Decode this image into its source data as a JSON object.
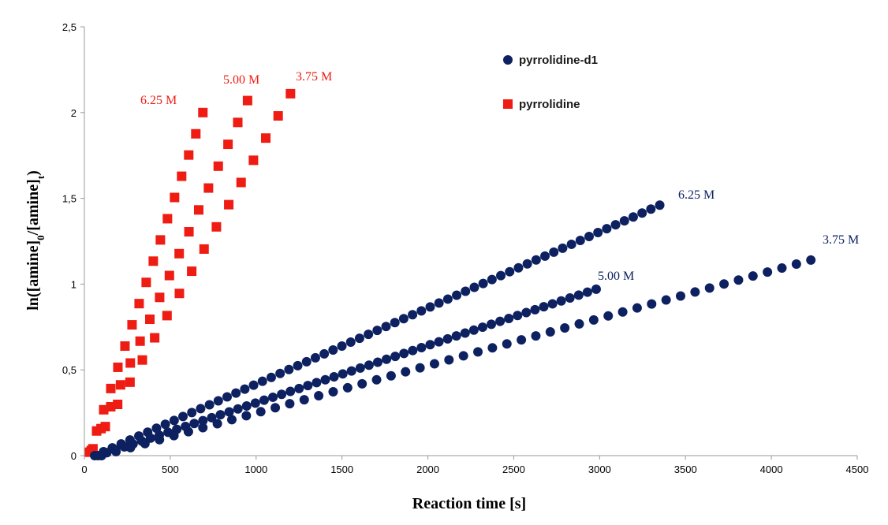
{
  "chart_data": {
    "type": "scatter",
    "title": "",
    "xlabel": "Reaction time [s]",
    "ylabel": "ln([amine]0/[amine]t)",
    "xlim": [
      0,
      4500
    ],
    "ylim": [
      0,
      2.5
    ],
    "x_ticks": [
      "0",
      "500",
      "1000",
      "1500",
      "2000",
      "2500",
      "3000",
      "3500",
      "4000",
      "4500"
    ],
    "y_ticks": [
      "0",
      "0,5",
      "1",
      "1,5",
      "2",
      "2,5"
    ],
    "grid": false,
    "legend_position": "top-right",
    "legend": [
      {
        "label": "pyrrolidine-d1",
        "marker": "circle",
        "color": "#0d2060"
      },
      {
        "label": "pyrrolidine",
        "marker": "square",
        "color": "#ee1c12"
      }
    ],
    "series": [
      {
        "group": "pyrrolidine",
        "annotation": "6.25 M",
        "marker": "square",
        "color": "#ee1c12",
        "x_start": 30,
        "x_end": 690,
        "y_start": 0.02,
        "y_end": 2.0,
        "count": 17
      },
      {
        "group": "pyrrolidine",
        "annotation": "5.00 M",
        "marker": "square",
        "color": "#ee1c12",
        "x_start": 40,
        "x_end": 950,
        "y_start": 0.03,
        "y_end": 2.07,
        "count": 17
      },
      {
        "group": "pyrrolidine",
        "annotation": "3.75 M",
        "marker": "square",
        "color": "#ee1c12",
        "x_start": 50,
        "x_end": 1200,
        "y_start": 0.04,
        "y_end": 2.11,
        "count": 17
      },
      {
        "group": "pyrrolidine-d1",
        "annotation": "6.25 M",
        "marker": "circle",
        "color": "#0d2060",
        "x_start": 60,
        "x_end": 3350,
        "y_start": 0.0,
        "y_end": 1.46,
        "count": 65
      },
      {
        "group": "pyrrolidine-d1",
        "annotation": "5.00 M",
        "marker": "circle",
        "color": "#0d2060",
        "x_start": 80,
        "x_end": 2980,
        "y_start": 0.0,
        "y_end": 0.97,
        "count": 58
      },
      {
        "group": "pyrrolidine-d1",
        "annotation": "3.75 M",
        "marker": "circle",
        "color": "#0d2060",
        "x_start": 100,
        "x_end": 4230,
        "y_start": 0.0,
        "y_end": 1.14,
        "count": 50
      }
    ]
  }
}
